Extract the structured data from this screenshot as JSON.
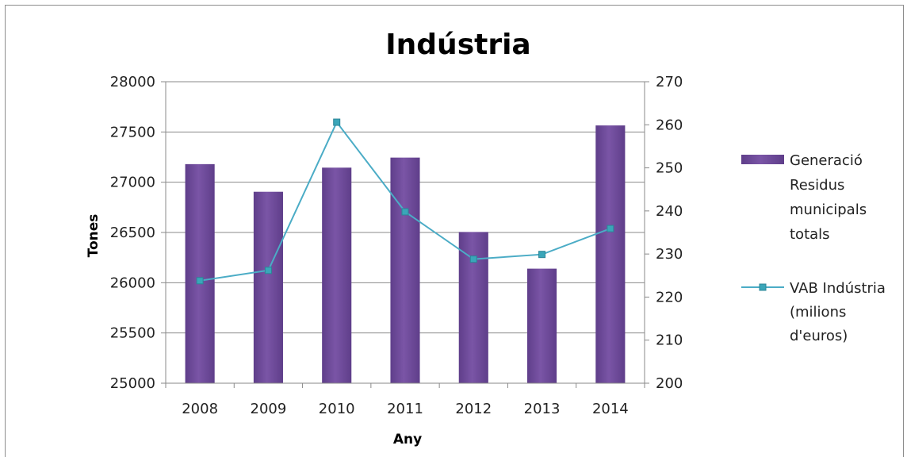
{
  "chart_data": {
    "type": "bar",
    "title": "Indústria",
    "xlabel": "Any",
    "ylabel": "Tones",
    "categories": [
      "2008",
      "2009",
      "2010",
      "2011",
      "2012",
      "2013",
      "2014"
    ],
    "y_left": {
      "min": 25000,
      "max": 28000,
      "step": 500,
      "ticks": [
        "25000",
        "25500",
        "26000",
        "26500",
        "27000",
        "27500",
        "28000"
      ]
    },
    "y_right": {
      "min": 200,
      "max": 270,
      "step": 10,
      "ticks": [
        "200",
        "210",
        "220",
        "230",
        "240",
        "250",
        "260",
        "270"
      ]
    },
    "grid": true,
    "legend_position": "right",
    "series": [
      {
        "name_lines": [
          "Generació",
          "Residus",
          "municipals",
          "totals"
        ],
        "kind": "bar",
        "axis": "left",
        "color": "#7a55a6",
        "values": [
          27180,
          26905,
          27145,
          27245,
          26505,
          26140,
          27565
        ]
      },
      {
        "name_lines": [
          "VAB Indústria",
          "(milions",
          "d'euros)"
        ],
        "kind": "line",
        "axis": "right",
        "color": "#4bacc6",
        "values": [
          223.8,
          226.2,
          260.6,
          239.8,
          228.8,
          229.9,
          235.9
        ]
      }
    ]
  }
}
